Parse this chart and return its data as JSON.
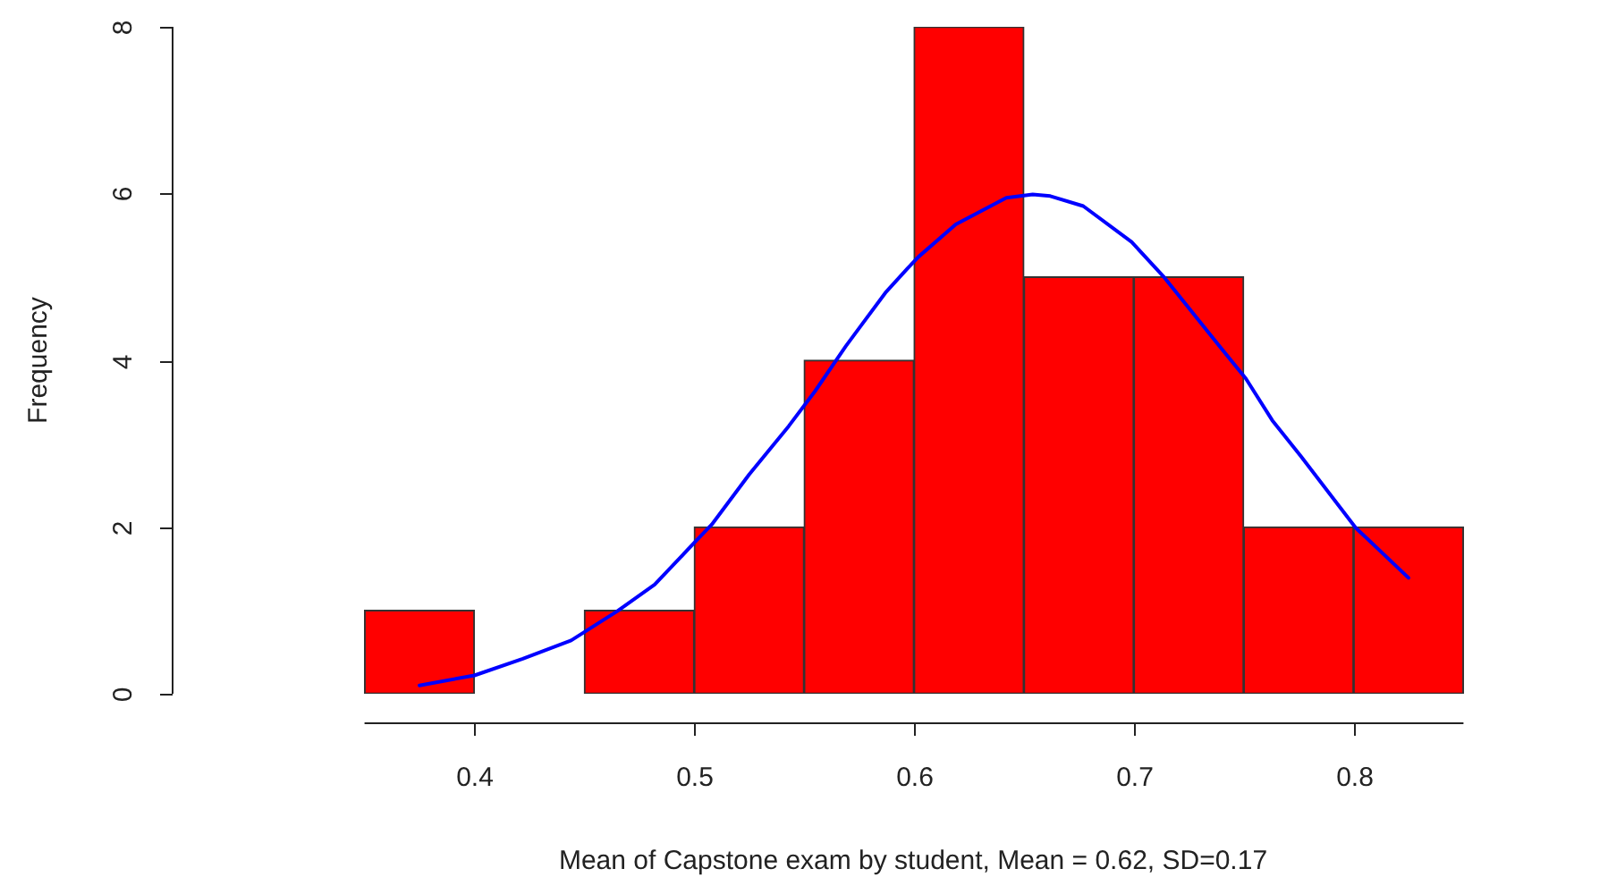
{
  "chart_data": {
    "type": "histogram",
    "xlabel": "Mean of Capstone exam by student, Mean = 0.62, SD=0.17",
    "ylabel": "Frequency",
    "bins": [
      0.35,
      0.4,
      0.45,
      0.5,
      0.55,
      0.6,
      0.65,
      0.7,
      0.75,
      0.8,
      0.85
    ],
    "values": [
      1,
      0,
      1,
      2,
      4,
      8,
      5,
      5,
      2,
      2
    ],
    "color": "#ff0000",
    "series": [
      {
        "type": "line",
        "color": "#0000ff",
        "x": [
          0.375,
          0.4,
          0.422,
          0.444,
          0.465,
          0.482,
          0.5,
          0.508,
          0.525,
          0.543,
          0.555,
          0.569,
          0.576,
          0.587,
          0.597,
          0.602,
          0.619,
          0.642,
          0.654,
          0.662,
          0.677,
          0.699,
          0.714,
          0.739,
          0.751,
          0.763,
          0.776,
          0.801,
          0.825
        ],
        "values": [
          0.1,
          0.22,
          0.42,
          0.64,
          0.99,
          1.31,
          1.81,
          2.03,
          2.63,
          3.21,
          3.63,
          4.17,
          4.42,
          4.81,
          5.1,
          5.24,
          5.63,
          5.95,
          5.99,
          5.97,
          5.85,
          5.42,
          4.99,
          4.17,
          3.78,
          3.28,
          2.85,
          1.99,
          1.39
        ]
      }
    ],
    "xlim": [
      0.35,
      0.85
    ],
    "xticks": [
      0.4,
      0.5,
      0.6,
      0.7,
      0.8
    ],
    "ylim": [
      0,
      8
    ],
    "yticks": [
      0,
      2,
      4,
      6,
      8
    ],
    "marker": "none",
    "line_style": "solid"
  }
}
